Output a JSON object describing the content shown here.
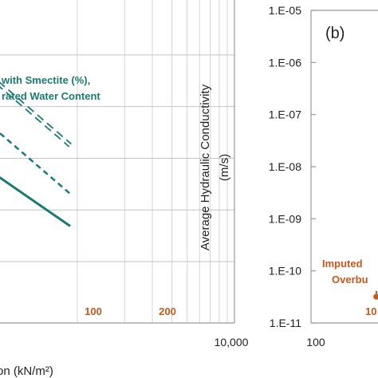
{
  "chart_data": [
    {
      "type": "line",
      "panel": "a",
      "x_scale": "log",
      "xlim": [
        100,
        10000
      ],
      "x_tick_labels": [
        "10,000"
      ],
      "xlabel_fragment": "on (kN/m²)",
      "legend_fragment_1": "with Smectite (%),",
      "legend_fragment_2": "rated Water Content",
      "series": [
        {
          "style": "solid",
          "x": [
            100,
            900
          ],
          "y": [
            0.62,
            0.3
          ]
        },
        {
          "style": "dashed",
          "x": [
            100,
            900
          ],
          "y": [
            0.8,
            0.4
          ]
        },
        {
          "style": "double-dashed",
          "x": [
            100,
            900
          ],
          "y": [
            0.95,
            0.55
          ]
        },
        {
          "style": "orange-dashed-markers",
          "x": [
            100,
            200
          ],
          "y": [
            0.2,
            0.2
          ],
          "point_labels": [
            "100",
            "200"
          ]
        }
      ]
    },
    {
      "type": "line",
      "panel": "b",
      "panel_label": "(b)",
      "x_scale": "log",
      "y_scale": "log",
      "ylabel_line1": "Average Hydraulic Conductivity",
      "ylabel_line2": "(m/s)",
      "y_ticks": [
        "1.E-05",
        "1.E-06",
        "1.E-07",
        "1.E-08",
        "1.E-09",
        "1.E-10",
        "1.E-11"
      ],
      "ylim": [
        1e-11,
        1e-05
      ],
      "x_tick_labels": [
        "100"
      ],
      "annotation_line1": "Imputed",
      "annotation_line2": "Overbu",
      "point_label_fragment": "10"
    }
  ]
}
